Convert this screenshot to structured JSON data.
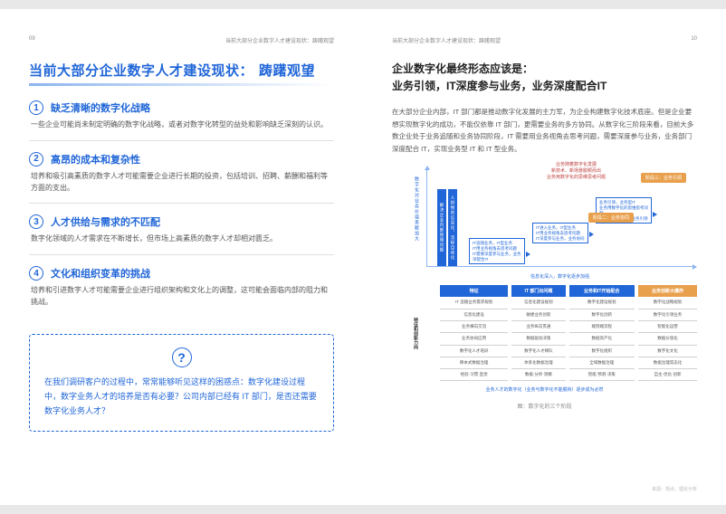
{
  "left": {
    "header": {
      "page_num": "09",
      "running": "当前大部分企业数字人才建设现状：踌躇观望"
    },
    "title": {
      "main": "当前大部分企业数字人才建设现状：",
      "suffix": "踌躇观望"
    },
    "items": [
      {
        "n": "1",
        "title": "缺乏清晰的数字化战略",
        "body": "一些企业可能尚未制定明确的数字化战略，或者对数字化转型的益处和影响缺乏深刻的认识。"
      },
      {
        "n": "2",
        "title": "高昂的成本和复杂性",
        "body": "培养和吸引高素质的数字人才可能需要企业进行长期的投资，包括培训、招聘、薪酬和福利等方面的支出。"
      },
      {
        "n": "3",
        "title": "人才供给与需求的不匹配",
        "body": "数字化领域的人才需求在不断增长，但市场上高素质的数字人才却相对匮乏。"
      },
      {
        "n": "4",
        "title": "文化和组织变革的挑战",
        "body": "培养和引进数字人才可能需要企业进行组织架构和文化上的调整，这可能会面临内部的阻力和挑战。"
      }
    ],
    "question": {
      "mark": "?",
      "text": "在我们调研客户的过程中，常常能够听见这样的困惑点：数字化建设过程中，数字业务人才的培养是否有必要？公司内部已经有 IT 部门，是否还需要数字化业务人才？"
    }
  },
  "right": {
    "header": {
      "running": "当前大部分企业数字人才建设现状：踌躇观望",
      "page_num": "10"
    },
    "title_l1": "企业数字化最终形态应该是：",
    "title_l2": "业务引领，IT深度参与业务，业务深度配合IT",
    "para": "在大部分企业内部，IT 部门都是推动数字化发展的主力军，为企业构建数字化技术底座。但是企业要想实现数字化的成功，不能仅依靠 IT 部门，更需要业务的多方协同。从数字化三阶段来看，目前大多数企业处于业务追随和业务协同阶段，IT 需要用业务视角去思考问题，需要深度参与业务，业务部门深度配合 IT，实现业务型 IT 和 IT 型业务。",
    "diagram": {
      "y_axis_label": "数字化对业务价值贡献加大",
      "x_axis_label": "信息化深入，数字化逐步加强",
      "red_note": "业务随着数字化发展\\n新技术、新场景脱颖而出\\n业务用数字化的思维思考问题",
      "vbar1": "解决企业内部管理问题",
      "vbar2": "人财物的信息化、流程自动化",
      "stairs": [
        {
          "text": "IT追随业务，IT型业务\\nIT用业务视角去思考问题\\nIT需要深度参与业务，业务深配合IT"
        },
        {
          "text": "IT进入业务，IT型业务\\nIT用业务视角去思考问题\\nIT深度参与业务，业务协同"
        },
        {
          "text": "业务引领，业务型IT\\n业务用数字化的思维思考问题\\nIT深度参与业务，业务引领"
        }
      ],
      "orange": [
        {
          "text": "阶段三：业务引领"
        },
        {
          "text": "阶段二：业务协同"
        }
      ],
      "table": {
        "row_group_label": "特征和创新力向",
        "cols": [
          "特征",
          "IT 部门出问题",
          "业务和IT开始配合",
          "业务创新大爆炸"
        ],
        "orange_col_idx": 3,
        "rows": [
          [
            "IT 追随业务需求规划",
            "信息化建设规划",
            "数字化建设规划",
            "数字化战略规划"
          ],
          [
            "信息化建设",
            "敏捷业务创新",
            "数字化创新",
            "数字化引领业务"
          ],
          [
            "业务横向交流",
            "业务纵向贯通",
            "端到端流程",
            "智能化运营"
          ],
          [
            "业务协同应用",
            "数据驱动决策",
            "数据资产化",
            "数据价值化"
          ],
          [
            "数字化人才培训",
            "数字化人才梯队",
            "数字化组织",
            "数字化文化"
          ],
          [
            "降本式数据治理",
            "体系化数据治理",
            "全域数据治理",
            "数据治理常态化"
          ],
          [
            "经验·习惯·直觉",
            "数据·分析·洞察",
            "智能·预测·决策",
            "自主·优化·创新"
          ]
        ]
      },
      "bottom_note": "业务人才的数字化（业务与数字化不能脱钩）逐步成为必然",
      "caption": "图：数字化的三个阶段",
      "source": "来源：观点、理论分析"
    }
  },
  "colors": {
    "blue": "#2066d8",
    "orange": "#e8a04d",
    "text": "#555",
    "light": "#8db5f0"
  }
}
